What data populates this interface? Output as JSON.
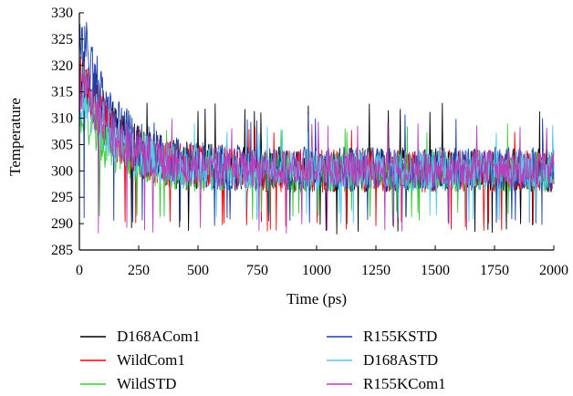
{
  "chart_data": {
    "type": "line",
    "xlabel": "Time (ps)",
    "ylabel": "Temperature",
    "xlim": [
      0,
      2000
    ],
    "ylim": [
      285,
      330
    ],
    "xticks": [
      0,
      250,
      500,
      750,
      1000,
      1250,
      1500,
      1750,
      2000
    ],
    "yticks": [
      285,
      290,
      295,
      300,
      305,
      310,
      315,
      320,
      325,
      330
    ],
    "grid": false,
    "legend_position": "bottom",
    "series": [
      {
        "name": "D168ACom1",
        "color": "#000000",
        "baseline": 300.2,
        "peak": 321,
        "amplitude": 4.2,
        "min": 288,
        "max": 313
      },
      {
        "name": "WildCom1",
        "color": "#ff0000",
        "baseline": 300.0,
        "peak": 320,
        "amplitude": 4.0,
        "min": 288.5,
        "max": 309
      },
      {
        "name": "WildSTD",
        "color": "#33cc33",
        "baseline": 299.8,
        "peak": 312,
        "amplitude": 3.8,
        "min": 290.5,
        "max": 309
      },
      {
        "name": "R155KSTD",
        "color": "#1f3fa8",
        "baseline": 300.3,
        "peak": 328,
        "amplitude": 4.2,
        "min": 289.5,
        "max": 311
      },
      {
        "name": "D168ASTD",
        "color": "#55ccee",
        "baseline": 300.1,
        "peak": 318,
        "amplitude": 3.9,
        "min": 290,
        "max": 309
      },
      {
        "name": "R155KCom1",
        "color": "#bb3fbb",
        "baseline": 300.4,
        "peak": 319,
        "amplitude": 3.6,
        "min": 288,
        "max": 310
      }
    ]
  }
}
